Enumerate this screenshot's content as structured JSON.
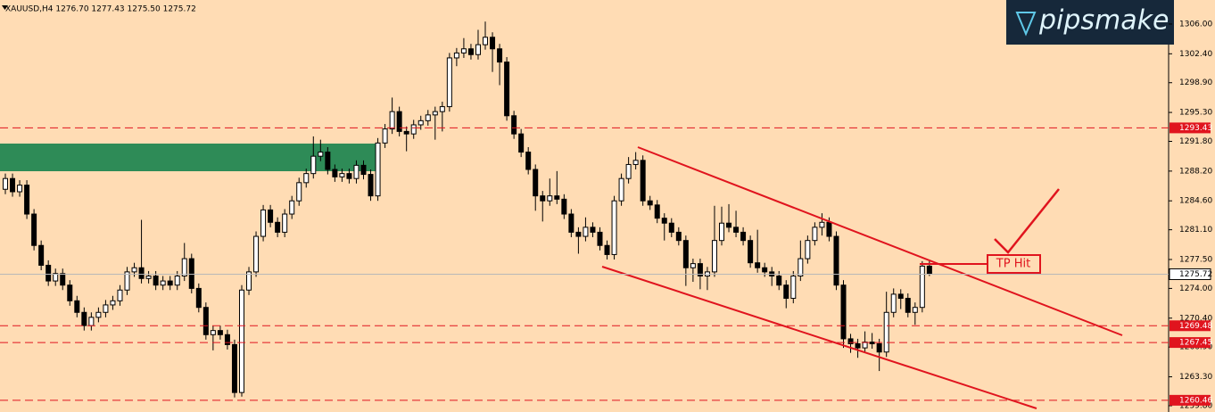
{
  "header": "XAUUSD,H4  1276.70 1277.43 1275.50 1275.72",
  "logo": "pipsmake",
  "annotation": "TP Hit",
  "chart_data": {
    "type": "candlestick",
    "up_color": "#ffffff",
    "down_color": "#000000",
    "level_color": "#e0141e",
    "ylim": [
      1259.04,
      1308.91
    ],
    "yticks": [
      {
        "value": 1306.0,
        "label": "1306.00"
      },
      {
        "value": 1302.4,
        "label": "1302.40"
      },
      {
        "value": 1298.9,
        "label": "1298.90"
      },
      {
        "value": 1295.3,
        "label": "1295.30"
      },
      {
        "value": 1291.8,
        "label": "1291.80"
      },
      {
        "value": 1288.2,
        "label": "1288.20"
      },
      {
        "value": 1284.6,
        "label": "1284.60"
      },
      {
        "value": 1281.1,
        "label": "1281.10"
      },
      {
        "value": 1277.5,
        "label": "1277.50"
      },
      {
        "value": 1274.0,
        "label": "1274.00"
      },
      {
        "value": 1270.4,
        "label": "1270.40"
      },
      {
        "value": 1266.9,
        "label": "1266.90"
      },
      {
        "value": 1263.3,
        "label": "1263.30"
      },
      {
        "value": 1259.8,
        "label": "1259.80"
      }
    ],
    "levels": [
      {
        "value": 1293.43,
        "label": "1293.43"
      },
      {
        "value": 1269.48,
        "label": "1269.48"
      },
      {
        "value": 1267.45,
        "label": "1267.45"
      },
      {
        "value": 1260.46,
        "label": "1260.46"
      }
    ],
    "current_price": {
      "value": 1275.72,
      "label": "1275.72"
    },
    "candles": [
      [
        1286.0,
        1287.9,
        1285.4,
        1287.3
      ],
      [
        1287.3,
        1287.9,
        1285.1,
        1285.7
      ],
      [
        1285.7,
        1287.1,
        1285.1,
        1286.5
      ],
      [
        1286.5,
        1287.1,
        1282.4,
        1283.0
      ],
      [
        1283.0,
        1283.6,
        1278.6,
        1279.2
      ],
      [
        1279.2,
        1279.8,
        1276.2,
        1276.8
      ],
      [
        1276.8,
        1277.4,
        1274.3,
        1274.9
      ],
      [
        1274.9,
        1276.4,
        1274.3,
        1275.8
      ],
      [
        1275.8,
        1276.4,
        1273.8,
        1274.4
      ],
      [
        1274.4,
        1275.0,
        1271.9,
        1272.5
      ],
      [
        1272.5,
        1273.1,
        1270.5,
        1271.1
      ],
      [
        1271.1,
        1271.7,
        1268.9,
        1269.5
      ],
      [
        1269.5,
        1271.1,
        1268.9,
        1270.5
      ],
      [
        1270.5,
        1271.7,
        1269.9,
        1271.1
      ],
      [
        1271.1,
        1272.6,
        1270.5,
        1272.0
      ],
      [
        1272.0,
        1273.1,
        1271.4,
        1272.5
      ],
      [
        1272.5,
        1274.4,
        1271.9,
        1273.8
      ],
      [
        1273.8,
        1276.6,
        1273.2,
        1276.0
      ],
      [
        1276.0,
        1277.1,
        1275.4,
        1276.5
      ],
      [
        1276.5,
        1282.3,
        1274.6,
        1275.2
      ],
      [
        1275.2,
        1276.1,
        1274.6,
        1275.5
      ],
      [
        1275.5,
        1276.1,
        1273.8,
        1274.4
      ],
      [
        1274.4,
        1275.5,
        1273.8,
        1274.9
      ],
      [
        1274.9,
        1275.5,
        1273.8,
        1274.4
      ],
      [
        1274.4,
        1276.1,
        1273.8,
        1275.5
      ],
      [
        1275.5,
        1279.5,
        1274.9,
        1277.6
      ],
      [
        1277.6,
        1278.2,
        1273.4,
        1274.0
      ],
      [
        1274.0,
        1274.6,
        1271.1,
        1271.7
      ],
      [
        1271.7,
        1272.3,
        1267.8,
        1268.4
      ],
      [
        1268.4,
        1269.5,
        1266.5,
        1268.9
      ],
      [
        1268.9,
        1269.5,
        1267.8,
        1268.4
      ],
      [
        1268.4,
        1269.0,
        1266.6,
        1267.2
      ],
      [
        1267.2,
        1267.8,
        1260.8,
        1261.4
      ],
      [
        1261.4,
        1274.4,
        1260.9,
        1273.8
      ],
      [
        1273.8,
        1276.6,
        1273.2,
        1276.0
      ],
      [
        1276.0,
        1280.9,
        1275.4,
        1280.3
      ],
      [
        1280.3,
        1284.1,
        1279.7,
        1283.5
      ],
      [
        1283.5,
        1284.1,
        1281.4,
        1282.0
      ],
      [
        1282.0,
        1282.6,
        1280.2,
        1280.8
      ],
      [
        1280.8,
        1283.6,
        1280.2,
        1283.0
      ],
      [
        1283.0,
        1285.2,
        1282.4,
        1284.6
      ],
      [
        1284.6,
        1287.4,
        1284.0,
        1286.8
      ],
      [
        1286.8,
        1288.5,
        1286.2,
        1287.9
      ],
      [
        1287.9,
        1292.4,
        1287.3,
        1290.0
      ],
      [
        1290.0,
        1292.0,
        1289.4,
        1290.5
      ],
      [
        1290.5,
        1291.1,
        1287.8,
        1288.4
      ],
      [
        1288.4,
        1289.0,
        1286.9,
        1287.5
      ],
      [
        1287.5,
        1288.5,
        1286.9,
        1287.9
      ],
      [
        1287.9,
        1288.5,
        1286.7,
        1287.3
      ],
      [
        1287.3,
        1289.5,
        1286.7,
        1288.9
      ],
      [
        1288.9,
        1289.5,
        1287.2,
        1287.8
      ],
      [
        1287.8,
        1288.4,
        1284.6,
        1285.2
      ],
      [
        1285.2,
        1292.2,
        1284.6,
        1291.6
      ],
      [
        1291.6,
        1293.9,
        1291.0,
        1293.3
      ],
      [
        1293.3,
        1297.1,
        1292.7,
        1295.4
      ],
      [
        1295.4,
        1296.0,
        1292.4,
        1293.0
      ],
      [
        1293.0,
        1293.6,
        1290.6,
        1292.7
      ],
      [
        1292.7,
        1294.4,
        1292.1,
        1293.8
      ],
      [
        1293.8,
        1294.9,
        1293.2,
        1294.3
      ],
      [
        1294.3,
        1295.6,
        1293.7,
        1295.0
      ],
      [
        1295.0,
        1296.0,
        1292.0,
        1295.4
      ],
      [
        1295.4,
        1296.6,
        1293.0,
        1296.0
      ],
      [
        1296.0,
        1302.5,
        1295.4,
        1301.9
      ],
      [
        1301.9,
        1303.1,
        1300.9,
        1302.5
      ],
      [
        1302.5,
        1304.3,
        1301.9,
        1303.0
      ],
      [
        1303.0,
        1303.6,
        1301.7,
        1302.3
      ],
      [
        1302.3,
        1305.3,
        1301.7,
        1303.5
      ],
      [
        1303.5,
        1306.3,
        1302.9,
        1304.4
      ],
      [
        1304.4,
        1305.0,
        1300.2,
        1303.0
      ],
      [
        1303.0,
        1303.6,
        1298.6,
        1301.4
      ],
      [
        1301.4,
        1302.0,
        1294.3,
        1294.9
      ],
      [
        1294.9,
        1295.5,
        1292.1,
        1292.7
      ],
      [
        1292.7,
        1293.3,
        1289.9,
        1290.5
      ],
      [
        1290.5,
        1291.1,
        1287.8,
        1288.4
      ],
      [
        1288.4,
        1289.0,
        1283.4,
        1285.2
      ],
      [
        1285.2,
        1285.8,
        1282.1,
        1284.6
      ],
      [
        1284.6,
        1287.3,
        1284.0,
        1285.2
      ],
      [
        1285.2,
        1288.2,
        1284.2,
        1284.8
      ],
      [
        1284.8,
        1285.4,
        1282.4,
        1283.0
      ],
      [
        1283.0,
        1283.6,
        1280.2,
        1280.8
      ],
      [
        1280.8,
        1281.4,
        1278.2,
        1280.3
      ],
      [
        1280.3,
        1282.6,
        1279.7,
        1281.4
      ],
      [
        1281.4,
        1282.0,
        1280.2,
        1280.8
      ],
      [
        1280.8,
        1281.4,
        1278.6,
        1279.2
      ],
      [
        1279.2,
        1279.8,
        1277.5,
        1278.1
      ],
      [
        1278.1,
        1285.2,
        1277.5,
        1284.6
      ],
      [
        1284.6,
        1287.9,
        1284.0,
        1287.3
      ],
      [
        1287.3,
        1289.9,
        1286.7,
        1289.0
      ],
      [
        1289.0,
        1290.5,
        1288.4,
        1289.5
      ],
      [
        1289.5,
        1290.1,
        1284.0,
        1284.6
      ],
      [
        1284.6,
        1285.2,
        1283.5,
        1284.1
      ],
      [
        1284.1,
        1284.7,
        1281.9,
        1282.5
      ],
      [
        1282.5,
        1283.1,
        1279.8,
        1281.9
      ],
      [
        1281.9,
        1282.5,
        1280.2,
        1280.8
      ],
      [
        1280.8,
        1281.4,
        1279.2,
        1279.8
      ],
      [
        1279.8,
        1280.4,
        1274.3,
        1276.5
      ],
      [
        1276.5,
        1277.6,
        1274.8,
        1277.0
      ],
      [
        1277.0,
        1277.6,
        1273.9,
        1275.5
      ],
      [
        1275.5,
        1276.6,
        1273.8,
        1276.0
      ],
      [
        1276.0,
        1284.0,
        1275.4,
        1279.8
      ],
      [
        1279.8,
        1283.9,
        1279.2,
        1281.9
      ],
      [
        1281.9,
        1284.2,
        1280.8,
        1281.4
      ],
      [
        1281.4,
        1283.4,
        1280.2,
        1280.8
      ],
      [
        1280.8,
        1281.4,
        1279.2,
        1279.8
      ],
      [
        1279.8,
        1280.4,
        1276.5,
        1277.1
      ],
      [
        1277.1,
        1281.1,
        1275.9,
        1276.5
      ],
      [
        1276.5,
        1277.1,
        1275.4,
        1276.0
      ],
      [
        1276.0,
        1276.6,
        1274.3,
        1275.5
      ],
      [
        1275.5,
        1276.1,
        1273.8,
        1274.4
      ],
      [
        1274.4,
        1275.0,
        1271.6,
        1272.8
      ],
      [
        1272.8,
        1276.1,
        1272.2,
        1275.5
      ],
      [
        1275.5,
        1279.8,
        1274.9,
        1277.6
      ],
      [
        1277.6,
        1280.4,
        1277.0,
        1279.8
      ],
      [
        1279.8,
        1282.0,
        1279.2,
        1281.4
      ],
      [
        1281.4,
        1283.1,
        1280.4,
        1282.0
      ],
      [
        1282.0,
        1282.6,
        1279.7,
        1280.3
      ],
      [
        1280.3,
        1280.9,
        1273.8,
        1274.4
      ],
      [
        1274.4,
        1275.0,
        1266.8,
        1267.9
      ],
      [
        1267.9,
        1268.5,
        1266.2,
        1267.3
      ],
      [
        1267.3,
        1267.9,
        1265.6,
        1266.8
      ],
      [
        1266.8,
        1268.8,
        1266.2,
        1267.5
      ],
      [
        1267.5,
        1268.6,
        1266.7,
        1267.3
      ],
      [
        1267.3,
        1267.9,
        1264.0,
        1266.3
      ],
      [
        1266.3,
        1273.6,
        1265.7,
        1271.1
      ],
      [
        1271.1,
        1274.0,
        1270.5,
        1273.3
      ],
      [
        1273.3,
        1273.9,
        1271.5,
        1272.8
      ],
      [
        1272.8,
        1273.4,
        1270.5,
        1271.1
      ],
      [
        1271.1,
        1272.3,
        1269.6,
        1271.7
      ],
      [
        1271.7,
        1277.3,
        1271.1,
        1276.7
      ],
      [
        1276.7,
        1277.43,
        1275.5,
        1275.72
      ]
    ]
  }
}
